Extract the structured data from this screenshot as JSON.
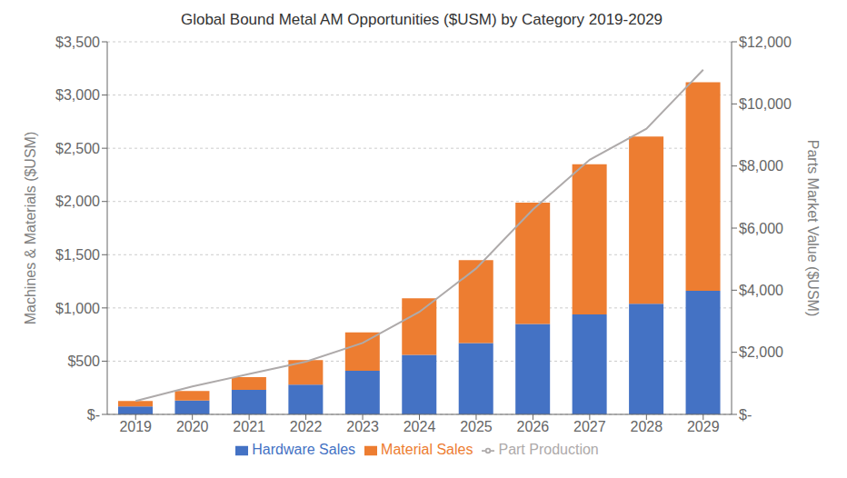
{
  "chart_data": {
    "type": "bar",
    "title": "Global Bound Metal AM Opportunities ($USM) by Category 2019-2029",
    "categories": [
      "2019",
      "2020",
      "2021",
      "2022",
      "2023",
      "2024",
      "2025",
      "2026",
      "2027",
      "2028",
      "2029"
    ],
    "series": [
      {
        "name": "Hardware Sales",
        "type": "bar",
        "color": "#4472C4",
        "values": [
          75,
          130,
          230,
          280,
          410,
          560,
          670,
          850,
          940,
          1040,
          1160
        ]
      },
      {
        "name": "Material Sales",
        "type": "bar",
        "color": "#ED7D31",
        "values": [
          50,
          90,
          120,
          230,
          360,
          530,
          780,
          1140,
          1410,
          1570,
          1960
        ]
      },
      {
        "name": "Part Production",
        "type": "line",
        "axis": "y2",
        "color": "#AEAAAA",
        "values": [
          430,
          900,
          1300,
          1700,
          2300,
          3300,
          4700,
          6600,
          8200,
          9200,
          11100
        ]
      }
    ],
    "stacked": true,
    "ylabel": "Machines & Materials ($USM)",
    "y2label": "Parts Market Value ($USM)",
    "ylim": [
      0,
      3500
    ],
    "yticks": [
      {
        "value": 0,
        "label": "$-"
      },
      {
        "value": 500,
        "label": "$500"
      },
      {
        "value": 1000,
        "label": "$1,000"
      },
      {
        "value": 1500,
        "label": "$1,500"
      },
      {
        "value": 2000,
        "label": "$2,000"
      },
      {
        "value": 2500,
        "label": "$2,500"
      },
      {
        "value": 3000,
        "label": "$3,000"
      },
      {
        "value": 3500,
        "label": "$3,500"
      }
    ],
    "y2lim": [
      0,
      12000
    ],
    "y2ticks": [
      {
        "value": 0,
        "label": "$-"
      },
      {
        "value": 2000,
        "label": "$2,000"
      },
      {
        "value": 4000,
        "label": "$4,000"
      },
      {
        "value": 6000,
        "label": "$6,000"
      },
      {
        "value": 8000,
        "label": "$8,000"
      },
      {
        "value": 10000,
        "label": "$10,000"
      },
      {
        "value": 12000,
        "label": "$12,000"
      }
    ],
    "grid": true,
    "legend": "bottom"
  }
}
